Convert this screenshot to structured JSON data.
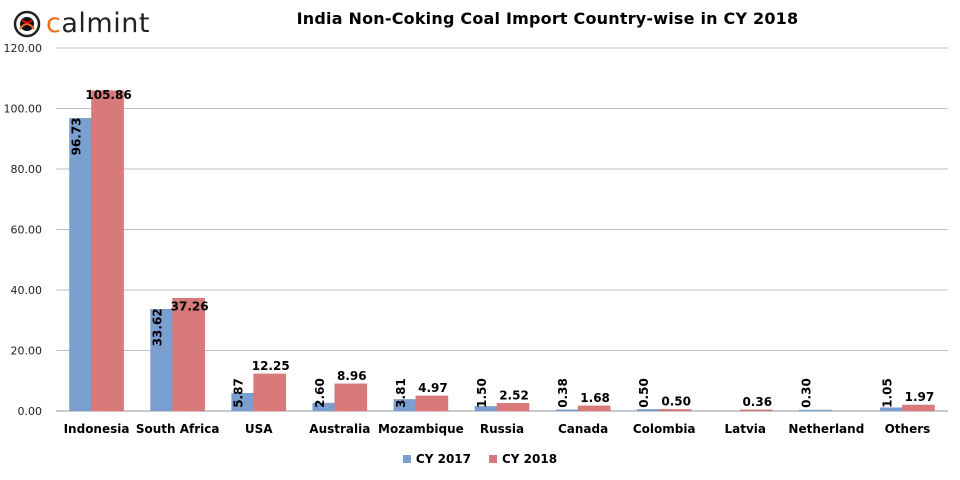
{
  "brand": {
    "logo_prefix": "c",
    "logo_suffix": "almint",
    "accent_color": "#f06b1f",
    "text_color": "#222222"
  },
  "chart_data": {
    "type": "bar",
    "title": "India Non-Coking Coal Import Country-wise in CY 2018",
    "xlabel": "",
    "ylabel": "",
    "categories": [
      "Indonesia",
      "South Africa",
      "USA",
      "Australia",
      "Mozambique",
      "Russia",
      "Canada",
      "Colombia",
      "Latvia",
      "Netherland",
      "Others"
    ],
    "series": [
      {
        "name": "CY 2017",
        "color": "#7a9fd0",
        "values": [
          96.73,
          33.62,
          5.87,
          2.6,
          3.81,
          1.5,
          0.38,
          0.5,
          null,
          0.3,
          1.05
        ],
        "labels": [
          "96.73",
          "33.62",
          "5.87",
          "2.60",
          "3.81",
          "1.50",
          "0.38",
          "0.50",
          "",
          "0.30",
          "1.05"
        ]
      },
      {
        "name": "CY 2018",
        "color": "#d97a7a",
        "values": [
          105.86,
          37.26,
          12.25,
          8.96,
          4.97,
          2.52,
          1.68,
          0.5,
          0.36,
          null,
          1.97
        ],
        "labels": [
          "105.86",
          "37.26",
          "12.25",
          "8.96",
          "4.97",
          "2.52",
          "1.68",
          "0.50",
          "0.36",
          "",
          "1.97"
        ]
      }
    ],
    "ylim": [
      0,
      120
    ],
    "yticks": [
      "0.00",
      "20.00",
      "40.00",
      "60.00",
      "80.00",
      "100.00",
      "120.00"
    ],
    "grid": true,
    "legend_position": "bottom"
  }
}
